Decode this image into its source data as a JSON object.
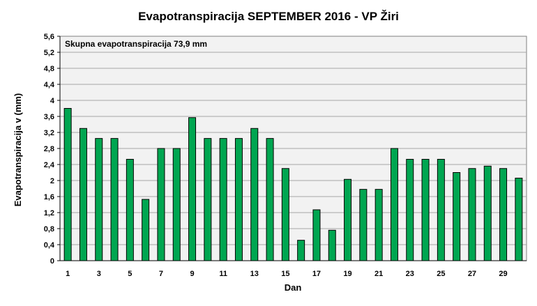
{
  "chart_data": {
    "type": "bar",
    "title": "Evapotranspiracija  SEPTEMBER  2016 - VP Žiri",
    "xlabel": "Dan",
    "ylabel": "Evapotranspiracija v  (mm)",
    "annotation": "Skupna evapotranspiracija  73,9 mm",
    "ylim": [
      0,
      5.6
    ],
    "y_ticks": [
      "0",
      "0,4",
      "0,8",
      "1,2",
      "1,6",
      "2",
      "2,4",
      "2,8",
      "3,2",
      "3,6",
      "4",
      "4,4",
      "4,8",
      "5,2",
      "5,6"
    ],
    "x_tick_labels": [
      "1",
      "3",
      "5",
      "7",
      "9",
      "11",
      "13",
      "15",
      "17",
      "19",
      "21",
      "23",
      "25",
      "27",
      "29"
    ],
    "categories": [
      "1",
      "2",
      "3",
      "4",
      "5",
      "6",
      "7",
      "8",
      "9",
      "10",
      "11",
      "12",
      "13",
      "14",
      "15",
      "16",
      "17",
      "18",
      "19",
      "20",
      "21",
      "22",
      "23",
      "24",
      "25",
      "26",
      "27",
      "28",
      "29",
      "30"
    ],
    "values": [
      3.8,
      3.3,
      3.05,
      3.05,
      2.53,
      1.53,
      2.8,
      2.8,
      3.57,
      3.05,
      3.05,
      3.05,
      3.3,
      3.05,
      2.3,
      0.51,
      1.27,
      0.76,
      2.03,
      1.78,
      1.78,
      2.8,
      2.53,
      2.53,
      2.53,
      2.2,
      2.3,
      2.36,
      2.3,
      2.06
    ],
    "grid": true,
    "colors": {
      "bar_fill": "#00a651",
      "bar_stroke": "#000000",
      "plot_background": "#f2f2f2",
      "gridline": "#a6a6a6"
    }
  }
}
